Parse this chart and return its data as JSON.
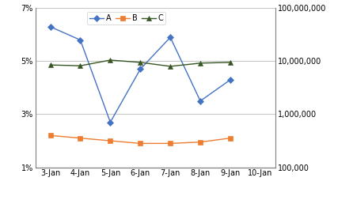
{
  "x_labels": [
    "3-Jan",
    "4-Jan",
    "5-Jan",
    "6-Jan",
    "7-Jan",
    "8-Jan",
    "9-Jan",
    "10-Jan"
  ],
  "series_A_x": [
    0,
    1,
    2,
    3,
    4,
    5,
    6
  ],
  "series_B_x": [
    0,
    1,
    2,
    3,
    4,
    5,
    6
  ],
  "series_C_x": [
    0,
    1,
    2,
    3,
    4,
    5,
    6
  ],
  "series_A": [
    0.063,
    0.058,
    0.027,
    0.047,
    0.059,
    0.035,
    0.043
  ],
  "series_B": [
    0.022,
    0.021,
    0.02,
    0.019,
    0.019,
    0.0195,
    0.021
  ],
  "series_C": [
    8500000,
    8200000,
    10500000,
    9500000,
    8000000,
    9200000,
    9500000
  ],
  "color_A": "#4472C4",
  "color_B": "#ED7D31",
  "color_C": "#375623",
  "ylim_left": [
    0.01,
    0.07
  ],
  "ylim_right": [
    100000,
    100000000
  ],
  "yticks_left": [
    0.01,
    0.03,
    0.05,
    0.07
  ],
  "ytick_labels_left": [
    "1%",
    "3%",
    "5%",
    "7%"
  ],
  "yticks_right": [
    100000,
    1000000,
    10000000,
    100000000
  ],
  "ytick_labels_right": [
    "100,000",
    "1,000,000",
    "10,000,000",
    "100,000,000"
  ],
  "bg_color": "#FFFFFF",
  "grid_color": "#C8C8C8"
}
